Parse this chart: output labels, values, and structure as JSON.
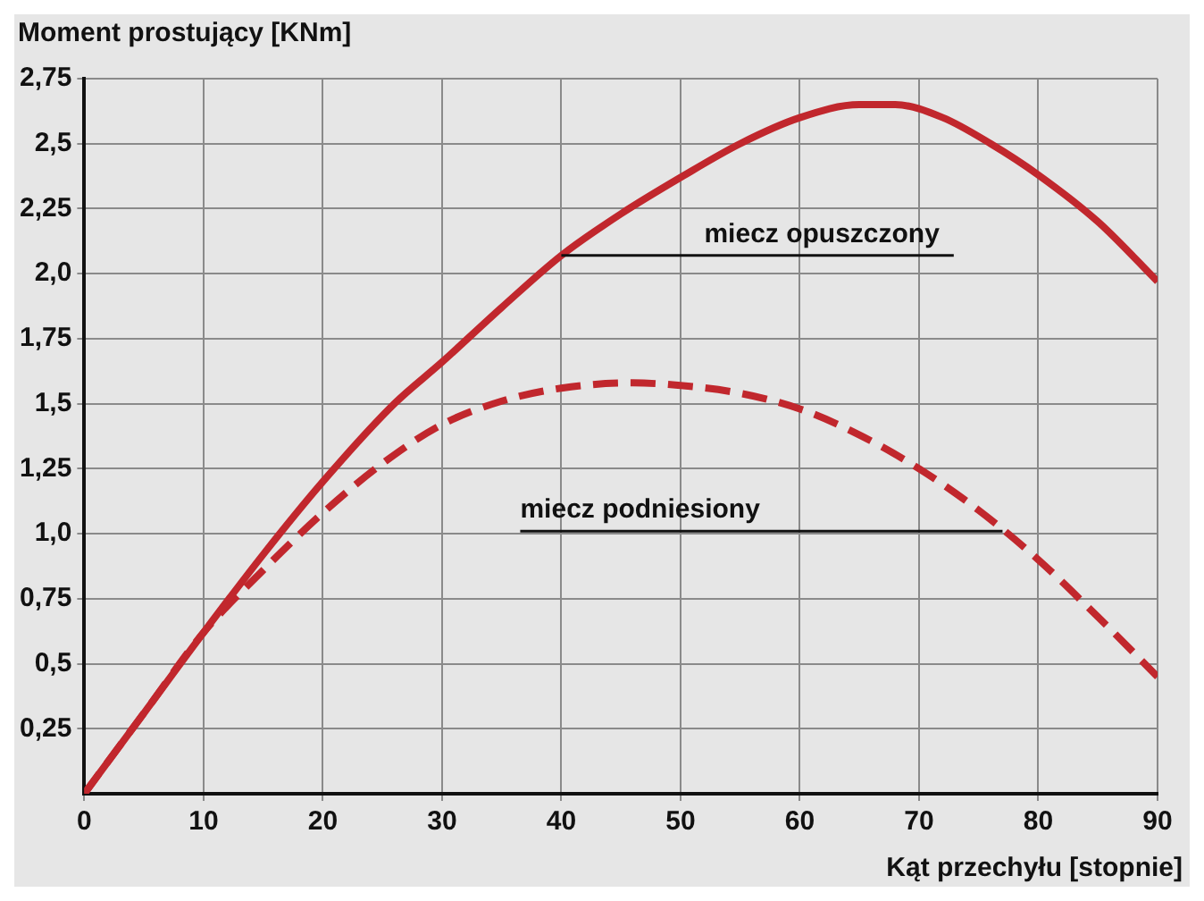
{
  "chart_data": {
    "type": "line",
    "xlabel": "Kąt przechyłu [stopnie]",
    "ylabel": "Moment prostujący [KNm]",
    "xlim": [
      0,
      90
    ],
    "xticks": [
      0,
      10,
      20,
      30,
      40,
      50,
      60,
      70,
      80,
      90
    ],
    "ylim": [
      0,
      2.75
    ],
    "yticks": [
      {
        "value": 0.25,
        "label": "0,25"
      },
      {
        "value": 0.5,
        "label": "0,5"
      },
      {
        "value": 0.75,
        "label": "0,75"
      },
      {
        "value": 1,
        "label": "1,0"
      },
      {
        "value": 1.25,
        "label": "1,25"
      },
      {
        "value": 1.5,
        "label": "1,5"
      },
      {
        "value": 1.75,
        "label": "1,75"
      },
      {
        "value": 2,
        "label": "2,0"
      },
      {
        "value": 2.25,
        "label": "2,25"
      },
      {
        "value": 2.5,
        "label": "2,5"
      },
      {
        "value": 2.75,
        "label": "2,75"
      }
    ],
    "grid": true,
    "legend": false,
    "marker": "none",
    "series": [
      {
        "color": "#c1272d",
        "line_style": "solid",
        "x": [
          0,
          5,
          10,
          15,
          20,
          26,
          30,
          35,
          40,
          45,
          50,
          55,
          60,
          65,
          68,
          72,
          76,
          80,
          85,
          90
        ],
        "values": [
          0,
          0.31,
          0.62,
          0.92,
          1.2,
          1.5,
          1.66,
          1.87,
          2.07,
          2.23,
          2.37,
          2.5,
          2.6,
          2.65,
          2.65,
          2.6,
          2.5,
          2.38,
          2.2,
          1.97
        ]
      },
      {
        "color": "#c1272d",
        "line_style": "dashed",
        "x": [
          0,
          5,
          10,
          15,
          20,
          25,
          30,
          35,
          40,
          46,
          50,
          55,
          60,
          65,
          70,
          75,
          80,
          85,
          90
        ],
        "values": [
          0,
          0.31,
          0.62,
          0.86,
          1.08,
          1.27,
          1.42,
          1.51,
          1.56,
          1.58,
          1.57,
          1.54,
          1.48,
          1.38,
          1.25,
          1.09,
          0.9,
          0.68,
          0.45
        ]
      }
    ],
    "annotations": [
      {
        "text": "miecz opuszczony",
        "x": 40,
        "y": 2.07
      },
      {
        "text": "miecz podniesiony",
        "x": 77,
        "y": 1.01
      }
    ]
  }
}
